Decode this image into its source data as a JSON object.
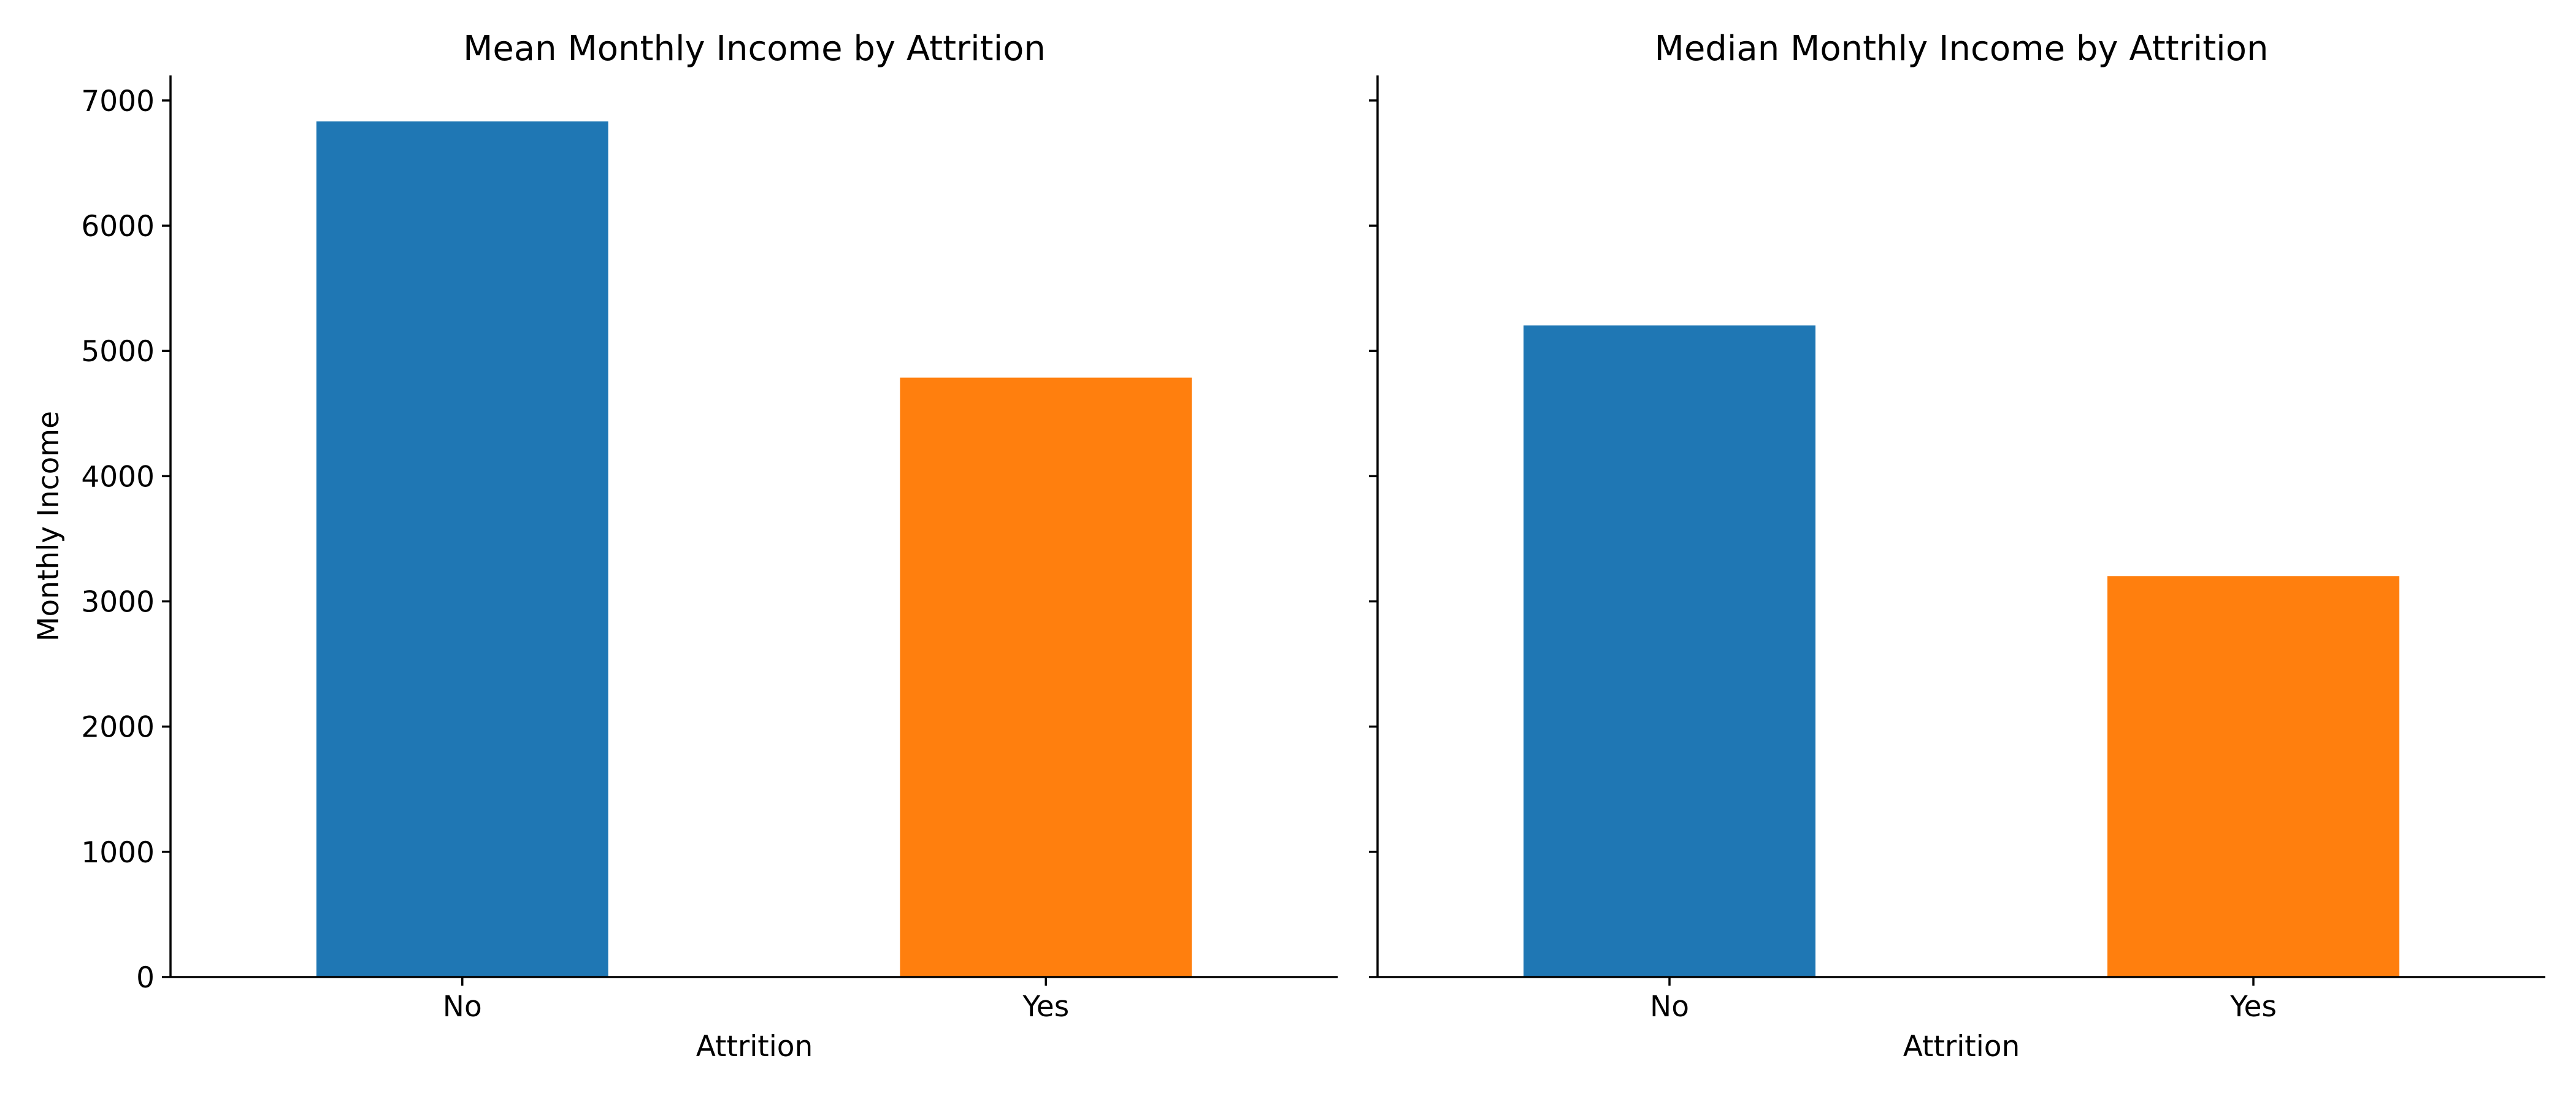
{
  "chart_data": [
    {
      "type": "bar",
      "title": "Mean Monthly Income by Attrition",
      "xlabel": "Attrition",
      "ylabel": "Monthly Income",
      "categories": [
        "No",
        "Yes"
      ],
      "values": [
        6833,
        4787
      ],
      "colors": [
        "#1f77b4",
        "#ff7f0e"
      ],
      "ylim": [
        0,
        7200
      ],
      "yticks": [
        0,
        1000,
        2000,
        3000,
        4000,
        5000,
        6000,
        7000
      ],
      "grid": false,
      "legend": "none"
    },
    {
      "type": "bar",
      "title": "Median Monthly Income by Attrition",
      "xlabel": "Attrition",
      "ylabel": "",
      "categories": [
        "No",
        "Yes"
      ],
      "values": [
        5204,
        3202
      ],
      "colors": [
        "#1f77b4",
        "#ff7f0e"
      ],
      "ylim": [
        0,
        7200
      ],
      "yticks": [
        0,
        1000,
        2000,
        3000,
        4000,
        5000,
        6000,
        7000
      ],
      "shared_y": true,
      "grid": false,
      "legend": "none"
    }
  ]
}
